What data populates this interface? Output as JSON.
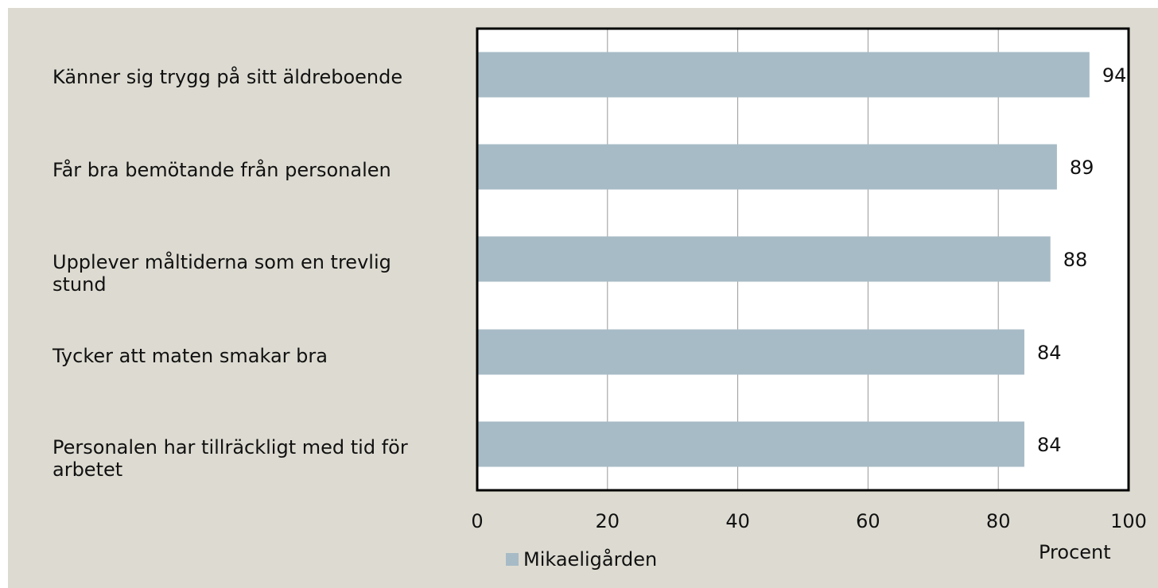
{
  "chart_data": {
    "type": "bar",
    "orientation": "horizontal",
    "categories": [
      "Känner sig trygg på sitt äldreboende",
      "Får bra bemötande från personalen",
      "Upplever måltiderna som en trevlig stund",
      "Tycker att maten smakar bra",
      "Personalen har tillräckligt med tid för arbetet"
    ],
    "series": [
      {
        "name": "Mikaeligården",
        "values": [
          94,
          89,
          88,
          84,
          84
        ],
        "color": "#a7bbc6"
      }
    ],
    "data_labels": [
      "94",
      "89",
      "88",
      "84",
      "84"
    ],
    "xticks": [
      "0",
      "20",
      "40",
      "60",
      "80",
      "100"
    ],
    "xlim": [
      0,
      100
    ],
    "xlabel": "Procent",
    "grid": true,
    "legend_position": "bottom-left"
  },
  "colors": {
    "background": "#dddbd1",
    "bar": "#a7bbc6",
    "grid": "#999999",
    "axis": "#000000"
  }
}
